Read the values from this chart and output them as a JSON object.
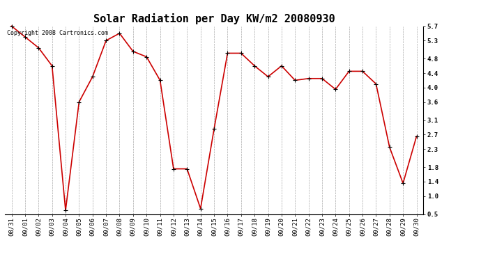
{
  "title": "Solar Radiation per Day KW/m2 20080930",
  "copyright_text": "Copyright 2008 Cartronics.com",
  "dates": [
    "08/31",
    "09/01",
    "09/02",
    "09/03",
    "09/04",
    "09/05",
    "09/06",
    "09/07",
    "09/08",
    "09/09",
    "09/10",
    "09/11",
    "09/12",
    "09/13",
    "09/14",
    "09/15",
    "09/16",
    "09/17",
    "09/18",
    "09/19",
    "09/20",
    "09/21",
    "09/22",
    "09/23",
    "09/24",
    "09/25",
    "09/26",
    "09/27",
    "09/28",
    "09/29",
    "09/30"
  ],
  "values": [
    5.7,
    5.4,
    5.1,
    4.6,
    0.6,
    3.6,
    4.3,
    5.3,
    5.5,
    5.0,
    4.85,
    4.2,
    1.75,
    1.75,
    0.65,
    2.85,
    4.95,
    4.95,
    4.6,
    4.3,
    4.6,
    4.2,
    4.25,
    4.25,
    3.95,
    4.45,
    4.45,
    4.1,
    2.35,
    1.35,
    2.65
  ],
  "line_color": "#cc0000",
  "marker": "+",
  "marker_size": 5,
  "line_width": 1.2,
  "ylim": [
    0.5,
    5.7
  ],
  "yticks": [
    0.5,
    1.0,
    1.4,
    1.8,
    2.3,
    2.7,
    3.1,
    3.6,
    4.0,
    4.4,
    4.8,
    5.3,
    5.7
  ],
  "ytick_labels": [
    "0.5",
    "1.0",
    "1.4",
    "1.8",
    "2.3",
    "2.7",
    "3.1",
    "3.6",
    "4.0",
    "4.4",
    "4.8",
    "5.3",
    "5.7"
  ],
  "background_color": "#ffffff",
  "grid_color": "#aaaaaa",
  "title_fontsize": 11,
  "tick_fontsize": 6.5,
  "copyright_fontsize": 6
}
